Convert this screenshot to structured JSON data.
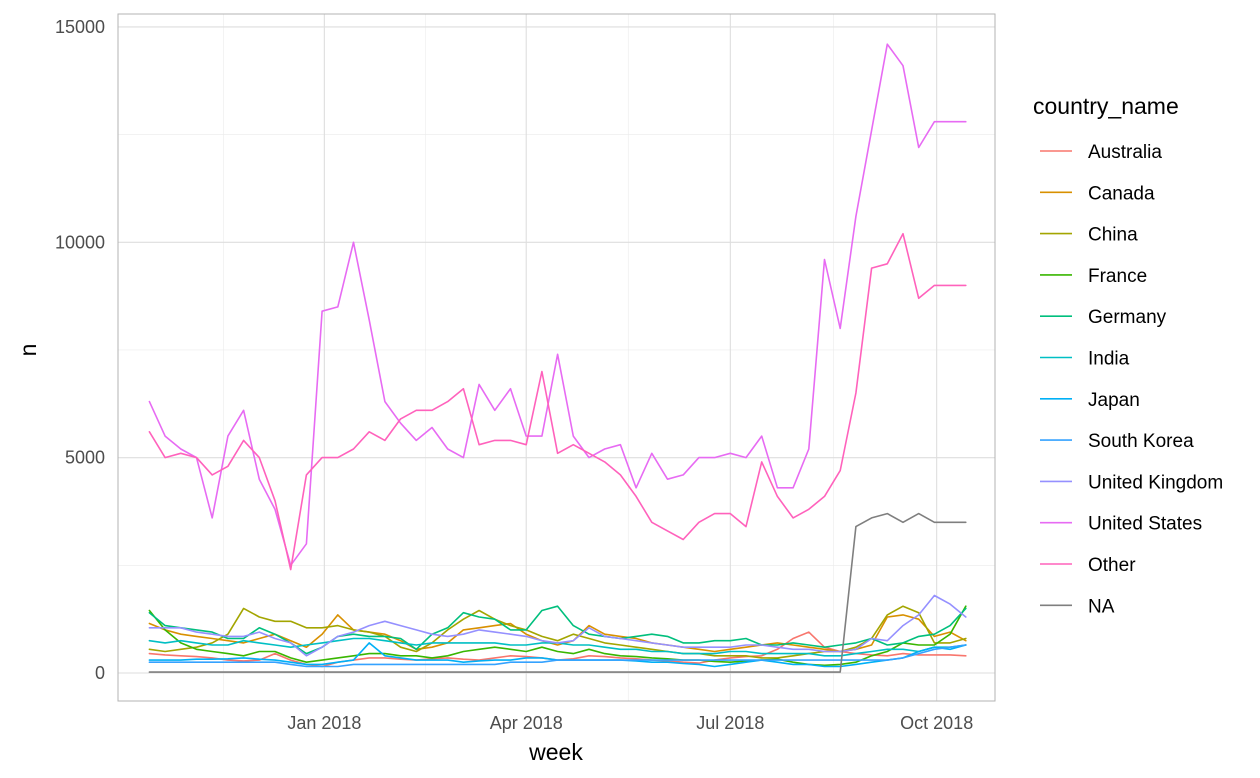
{
  "chart_data": {
    "type": "line",
    "title": "",
    "xlabel": "week",
    "ylabel": "n",
    "ylim": [
      -650,
      15300
    ],
    "xlim": [
      "2017-10-01",
      "2018-10-27"
    ],
    "grid": true,
    "legend_position": "right",
    "legend_title": "country_name",
    "x_ticks": [
      "Jan 2018",
      "Apr 2018",
      "Jul 2018",
      "Oct 2018"
    ],
    "x_tick_dates": [
      "2018-01-01",
      "2018-04-01",
      "2018-07-01",
      "2018-10-01"
    ],
    "y_ticks": [
      0,
      5000,
      10000,
      15000
    ],
    "y_tick_labels": [
      "0",
      "5000",
      "10000",
      "15000"
    ],
    "x": [
      "2017-10-15",
      "2017-10-22",
      "2017-10-29",
      "2017-11-05",
      "2017-11-12",
      "2017-11-19",
      "2017-11-26",
      "2017-12-03",
      "2017-12-10",
      "2017-12-17",
      "2017-12-24",
      "2017-12-31",
      "2018-01-07",
      "2018-01-14",
      "2018-01-21",
      "2018-01-28",
      "2018-02-04",
      "2018-02-11",
      "2018-02-18",
      "2018-02-25",
      "2018-03-04",
      "2018-03-11",
      "2018-03-18",
      "2018-03-25",
      "2018-04-01",
      "2018-04-08",
      "2018-04-15",
      "2018-04-22",
      "2018-04-29",
      "2018-05-06",
      "2018-05-13",
      "2018-05-20",
      "2018-05-27",
      "2018-06-03",
      "2018-06-10",
      "2018-06-17",
      "2018-06-24",
      "2018-07-01",
      "2018-07-08",
      "2018-07-15",
      "2018-07-22",
      "2018-07-29",
      "2018-08-05",
      "2018-08-12",
      "2018-08-19",
      "2018-08-26",
      "2018-09-02",
      "2018-09-09",
      "2018-09-16",
      "2018-09-23",
      "2018-09-30",
      "2018-10-07",
      "2018-10-14"
    ],
    "series": [
      {
        "name": "Australia",
        "color": "#F8766D",
        "values": [
          450,
          420,
          400,
          380,
          350,
          300,
          280,
          300,
          450,
          300,
          200,
          150,
          250,
          300,
          350,
          350,
          320,
          300,
          330,
          350,
          320,
          300,
          350,
          400,
          380,
          350,
          300,
          330,
          400,
          380,
          350,
          330,
          300,
          280,
          250,
          230,
          300,
          350,
          380,
          400,
          550,
          800,
          950,
          600,
          500,
          450,
          420,
          400,
          450,
          420,
          420,
          420,
          400
        ]
      },
      {
        "name": "Canada",
        "color": "#D89000",
        "values": [
          1150,
          1000,
          900,
          850,
          800,
          750,
          700,
          800,
          900,
          750,
          600,
          900,
          1350,
          1000,
          950,
          900,
          750,
          550,
          600,
          700,
          1000,
          1050,
          1100,
          1150,
          900,
          750,
          650,
          750,
          1100,
          900,
          850,
          800,
          700,
          650,
          600,
          550,
          500,
          550,
          600,
          650,
          700,
          650,
          600,
          550,
          500,
          550,
          650,
          1300,
          1350,
          1250,
          850,
          950,
          750
        ]
      },
      {
        "name": "China",
        "color": "#A3A500",
        "values": [
          550,
          500,
          550,
          600,
          700,
          900,
          1500,
          1300,
          1200,
          1200,
          1050,
          1050,
          1100,
          1000,
          950,
          850,
          600,
          500,
          700,
          1000,
          1250,
          1450,
          1250,
          1100,
          1000,
          850,
          750,
          900,
          800,
          700,
          650,
          600,
          550,
          500,
          450,
          450,
          400,
          400,
          400,
          350,
          350,
          400,
          450,
          500,
          500,
          600,
          800,
          1350,
          1550,
          1400,
          700,
          700,
          800
        ]
      },
      {
        "name": "France",
        "color": "#39B600",
        "values": [
          1450,
          1000,
          700,
          550,
          500,
          450,
          400,
          500,
          500,
          350,
          250,
          300,
          350,
          400,
          450,
          450,
          400,
          400,
          350,
          400,
          500,
          550,
          600,
          550,
          500,
          600,
          500,
          450,
          550,
          450,
          400,
          380,
          350,
          330,
          300,
          300,
          270,
          250,
          280,
          300,
          320,
          250,
          200,
          180,
          200,
          250,
          400,
          500,
          700,
          650,
          650,
          900,
          1550
        ]
      },
      {
        "name": "Germany",
        "color": "#00BF7D",
        "values": [
          1400,
          1100,
          1050,
          1000,
          950,
          800,
          800,
          1050,
          900,
          700,
          450,
          600,
          850,
          900,
          850,
          850,
          800,
          550,
          900,
          1050,
          1400,
          1300,
          1250,
          1000,
          1000,
          1450,
          1550,
          1100,
          900,
          850,
          800,
          850,
          900,
          850,
          700,
          700,
          750,
          750,
          800,
          650,
          650,
          700,
          650,
          600,
          650,
          700,
          800,
          650,
          700,
          850,
          900,
          1100,
          1500
        ]
      },
      {
        "name": "India",
        "color": "#00BFC4",
        "values": [
          750,
          700,
          750,
          700,
          650,
          650,
          750,
          700,
          650,
          600,
          650,
          700,
          750,
          800,
          800,
          750,
          700,
          650,
          700,
          700,
          700,
          700,
          700,
          650,
          650,
          700,
          700,
          650,
          650,
          600,
          550,
          550,
          500,
          500,
          450,
          450,
          450,
          500,
          500,
          450,
          450,
          450,
          450,
          400,
          400,
          450,
          500,
          550,
          550,
          500,
          600,
          600,
          650
        ]
      },
      {
        "name": "Japan",
        "color": "#00B0F6",
        "values": [
          300,
          300,
          300,
          320,
          320,
          330,
          350,
          320,
          300,
          250,
          200,
          200,
          250,
          300,
          700,
          400,
          350,
          300,
          300,
          300,
          250,
          280,
          300,
          300,
          350,
          350,
          300,
          300,
          300,
          300,
          300,
          280,
          250,
          250,
          220,
          200,
          150,
          200,
          250,
          300,
          250,
          200,
          200,
          150,
          150,
          200,
          250,
          300,
          350,
          500,
          600,
          550,
          650
        ]
      },
      {
        "name": "South Korea",
        "color": "#35A2FF",
        "values": [
          250,
          250,
          250,
          250,
          250,
          250,
          250,
          250,
          250,
          200,
          150,
          150,
          150,
          200,
          200,
          200,
          200,
          200,
          200,
          200,
          200,
          200,
          200,
          250,
          250,
          250,
          300,
          300,
          300,
          300,
          300,
          300,
          300,
          300,
          300,
          300,
          300,
          300,
          300,
          300,
          300,
          300,
          300,
          300,
          300,
          300,
          300,
          300,
          350,
          450,
          550,
          600,
          650
        ]
      },
      {
        "name": "United Kingdom",
        "color": "#9590FF",
        "values": [
          1050,
          1050,
          1050,
          950,
          900,
          850,
          850,
          950,
          800,
          700,
          400,
          600,
          850,
          950,
          1100,
          1200,
          1100,
          1000,
          900,
          850,
          900,
          1000,
          950,
          900,
          850,
          750,
          700,
          750,
          1050,
          850,
          800,
          750,
          700,
          650,
          600,
          600,
          600,
          600,
          650,
          650,
          600,
          550,
          550,
          500,
          500,
          550,
          800,
          750,
          1100,
          1350,
          1800,
          1600,
          1300
        ]
      },
      {
        "name": "United States",
        "color": "#E76BF3",
        "values": [
          6300,
          5500,
          5200,
          5000,
          3600,
          5500,
          6100,
          4500,
          3800,
          2500,
          3000,
          8400,
          8500,
          10000,
          8200,
          6300,
          5800,
          5400,
          5700,
          5200,
          5000,
          6700,
          6100,
          6600,
          5500,
          5500,
          7400,
          5500,
          5000,
          5200,
          5300,
          4300,
          5100,
          4500,
          4600,
          5000,
          5000,
          5100,
          5000,
          5500,
          4300,
          4300,
          5200,
          9600,
          8000,
          10600,
          12600,
          14600,
          14100,
          12200,
          12800,
          12800,
          12800
        ]
      },
      {
        "name": "Other",
        "color": "#FF62BC",
        "values": [
          5600,
          5000,
          5100,
          5000,
          4600,
          4800,
          5400,
          5000,
          4000,
          2400,
          4600,
          5000,
          5000,
          5200,
          5600,
          5400,
          5900,
          6100,
          6100,
          6300,
          6600,
          5300,
          5400,
          5400,
          5300,
          7000,
          5100,
          5300,
          5100,
          4900,
          4600,
          4100,
          3500,
          3300,
          3100,
          3500,
          3700,
          3700,
          3400,
          4900,
          4100,
          3600,
          3800,
          4100,
          4700,
          6500,
          9400,
          9500,
          10200,
          8700,
          9000,
          9000,
          9000
        ]
      },
      {
        "name": "NA",
        "color": "#7F7F7F",
        "values": [
          20,
          20,
          20,
          20,
          20,
          20,
          20,
          20,
          20,
          20,
          20,
          20,
          20,
          20,
          20,
          20,
          20,
          20,
          20,
          20,
          20,
          20,
          20,
          20,
          20,
          20,
          20,
          20,
          20,
          20,
          20,
          20,
          20,
          20,
          20,
          20,
          20,
          20,
          20,
          20,
          20,
          20,
          20,
          20,
          20,
          3400,
          3600,
          3700,
          3500,
          3700,
          3500,
          3500,
          3500
        ]
      }
    ]
  }
}
